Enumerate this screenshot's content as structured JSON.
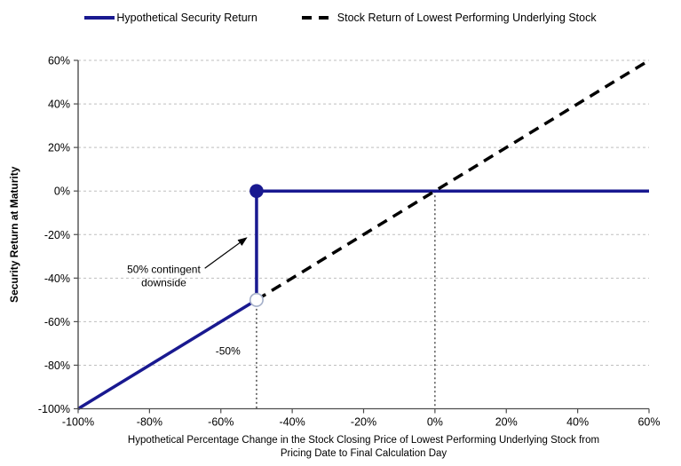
{
  "colors": {
    "navy": "#191990",
    "black": "#000000",
    "grid": "#bfbfbf",
    "axis": "#4d4d4d",
    "guide": "#333333",
    "marker_open_stroke": "#a3aec8",
    "text": "#000000"
  },
  "legend": {
    "items": [
      {
        "label": "Hypothetical Security Return",
        "style": "solid",
        "color_key": "navy"
      },
      {
        "label": "Stock Return of Lowest Performing Underlying Stock",
        "style": "dashed",
        "color_key": "black"
      }
    ]
  },
  "chart_data": {
    "type": "line",
    "title": "",
    "ylabel": "Security Return at Maturity",
    "xlabel_lines": [
      "Hypothetical Percentage Change in the Stock Closing Price of Lowest Performing Underlying Stock from",
      "Pricing Date to Final Calculation Day"
    ],
    "xlim": [
      -100,
      60
    ],
    "ylim": [
      -100,
      60
    ],
    "xticks": [
      -100,
      -80,
      -60,
      -40,
      -20,
      0,
      20,
      40,
      60
    ],
    "yticks": [
      -100,
      -80,
      -60,
      -40,
      -20,
      0,
      20,
      40,
      60
    ],
    "tick_suffix": "%",
    "grid": "horizontal-dashed",
    "legend_position": "top",
    "series": [
      {
        "name": "Hypothetical Security Return",
        "style": "solid",
        "color_key": "navy",
        "points": [
          [
            -100,
            -100
          ],
          [
            -50,
            -50
          ],
          [
            -50,
            0
          ],
          [
            60,
            0
          ]
        ]
      },
      {
        "name": "Stock Return of Lowest Performing Underlying Stock",
        "style": "dashed",
        "color_key": "black",
        "points": [
          [
            -50,
            -50
          ],
          [
            60,
            60
          ]
        ]
      }
    ],
    "markers": [
      {
        "x": -50,
        "y": -50,
        "style": "open-circle"
      },
      {
        "x": -50,
        "y": 0,
        "style": "filled-circle",
        "color_key": "navy"
      }
    ],
    "guides": [
      {
        "style": "vertical-dotted",
        "x": -50,
        "y_from": -50,
        "y_to": -100
      },
      {
        "style": "vertical-dotted",
        "x": 0,
        "y_from": 0,
        "y_to": -100
      }
    ],
    "annotations": [
      {
        "id": "contingent-downside",
        "lines": [
          "50% contingent",
          "downside"
        ],
        "x": -76,
        "y": -36,
        "arrow": {
          "x1": -64.5,
          "y1": -35.5,
          "x2": -52.8,
          "y2": -21.5
        }
      },
      {
        "id": "barrier-level-label",
        "lines": [
          "-50%"
        ],
        "x": -58,
        "y": -73.5
      }
    ]
  }
}
